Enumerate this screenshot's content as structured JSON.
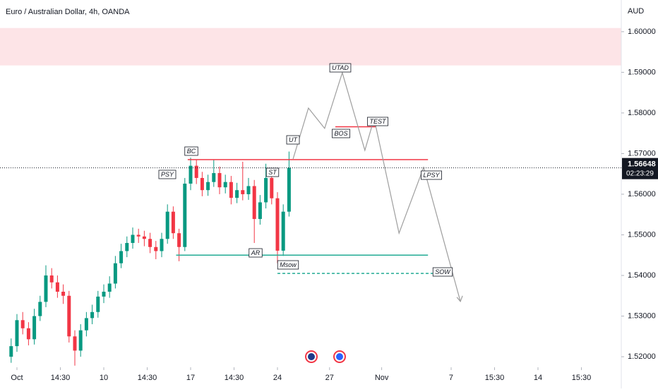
{
  "chart_data": {
    "type": "candlestick",
    "title": "Euro / Australian Dollar, 4h, OANDA",
    "y_unit": "AUD",
    "x": [
      -2,
      0,
      2,
      4,
      6,
      8,
      10,
      12,
      14,
      16,
      18,
      20,
      22,
      24,
      26,
      28,
      30,
      32,
      34,
      36,
      38,
      40,
      42,
      44,
      46,
      48,
      50,
      52,
      54,
      56,
      58,
      60,
      62,
      64,
      66,
      68,
      70,
      72,
      74,
      76,
      78,
      80,
      82,
      84,
      86,
      88,
      90,
      92,
      94
    ],
    "open": [
      1.52,
      1.5226,
      1.529,
      1.527,
      1.5243,
      1.53,
      1.5335,
      1.54,
      1.5383,
      1.536,
      1.535,
      1.525,
      1.5215,
      1.5265,
      1.5295,
      1.531,
      1.5348,
      1.536,
      1.538,
      1.543,
      1.546,
      1.548,
      1.55,
      1.5496,
      1.549,
      1.547,
      1.546,
      1.549,
      1.5557,
      1.5504,
      1.547,
      1.5626,
      1.567,
      1.564,
      1.561,
      1.563,
      1.5652,
      1.5617,
      1.563,
      1.5591,
      1.561,
      1.56,
      1.562,
      1.5539,
      1.558,
      1.564,
      1.559,
      1.5461,
      1.5557
    ],
    "high": [
      1.5245,
      1.5305,
      1.531,
      1.5285,
      1.5318,
      1.535,
      1.5425,
      1.5418,
      1.54,
      1.5378,
      1.5362,
      1.5265,
      1.528,
      1.531,
      1.5328,
      1.5362,
      1.5378,
      1.5398,
      1.5448,
      1.5478,
      1.5496,
      1.5518,
      1.5515,
      1.551,
      1.5505,
      1.5485,
      1.5505,
      1.5575,
      1.557,
      1.5515,
      1.564,
      1.569,
      1.5685,
      1.5655,
      1.5648,
      1.5685,
      1.5668,
      1.5648,
      1.5645,
      1.5628,
      1.568,
      1.564,
      1.5635,
      1.5598,
      1.5675,
      1.5655,
      1.5605,
      1.5575,
      1.5705
    ],
    "low": [
      1.5185,
      1.5212,
      1.5255,
      1.5228,
      1.523,
      1.5288,
      1.5322,
      1.5368,
      1.5345,
      1.533,
      1.5235,
      1.5178,
      1.52,
      1.525,
      1.528,
      1.5296,
      1.5332,
      1.5345,
      1.5368,
      1.5418,
      1.5445,
      1.5466,
      1.548,
      1.5472,
      1.5455,
      1.544,
      1.5445,
      1.5478,
      1.549,
      1.5435,
      1.546,
      1.561,
      1.5625,
      1.5595,
      1.5596,
      1.5618,
      1.56,
      1.5602,
      1.5575,
      1.5578,
      1.5585,
      1.5586,
      1.548,
      1.5525,
      1.5565,
      1.5575,
      1.543,
      1.5448,
      1.5545
    ],
    "close": [
      1.5226,
      1.529,
      1.527,
      1.5243,
      1.53,
      1.5335,
      1.54,
      1.5383,
      1.536,
      1.535,
      1.525,
      1.5215,
      1.5265,
      1.5295,
      1.531,
      1.5348,
      1.536,
      1.538,
      1.543,
      1.546,
      1.548,
      1.55,
      1.5496,
      1.549,
      1.547,
      1.546,
      1.549,
      1.5557,
      1.5504,
      1.547,
      1.5626,
      1.567,
      1.564,
      1.561,
      1.563,
      1.5652,
      1.5617,
      1.563,
      1.5591,
      1.561,
      1.56,
      1.562,
      1.5539,
      1.558,
      1.564,
      1.559,
      1.5461,
      1.5557,
      1.5665
    ],
    "up_color": "#089981",
    "down_color": "#f23645",
    "xlim": [
      -5.85,
      208.78
    ],
    "ylim": [
      1.5174,
      1.6078
    ],
    "xticks": [
      {
        "value": 0,
        "label": "Oct"
      },
      {
        "value": 15,
        "label": "14:30"
      },
      {
        "value": 30,
        "label": "10"
      },
      {
        "value": 45,
        "label": "14:30"
      },
      {
        "value": 60,
        "label": "17"
      },
      {
        "value": 75,
        "label": "14:30"
      },
      {
        "value": 90,
        "label": "24"
      },
      {
        "value": 108,
        "label": "27"
      },
      {
        "value": 126,
        "label": "Nov"
      },
      {
        "value": 150,
        "label": "7"
      },
      {
        "value": 165,
        "label": "15:30"
      },
      {
        "value": 180,
        "label": "14"
      },
      {
        "value": 195,
        "label": "15:30"
      }
    ],
    "yticks": [
      {
        "value": 1.52,
        "label": "1.52000"
      },
      {
        "value": 1.53,
        "label": "1.53000"
      },
      {
        "value": 1.54,
        "label": "1.54000"
      },
      {
        "value": 1.55,
        "label": "1.55000"
      },
      {
        "value": 1.56,
        "label": "1.56000"
      },
      {
        "value": 1.57,
        "label": "1.57000"
      },
      {
        "value": 1.58,
        "label": "1.58000"
      },
      {
        "value": 1.59,
        "label": "1.59000"
      },
      {
        "value": 1.6,
        "label": "1.60000"
      }
    ],
    "last_price": {
      "value": 1.56648,
      "label": "1.56648",
      "countdown": "02:23:29"
    },
    "zone": {
      "from": 1.5917,
      "to": 1.6009,
      "color": "#fde4e7"
    },
    "levels": [
      {
        "value": 1.5685,
        "x_from": 59,
        "x_to": 142,
        "color": "#f23645",
        "dashed": false
      },
      {
        "value": 1.5766,
        "x_from": 110,
        "x_to": 124,
        "color": "#f23645",
        "dashed": false
      },
      {
        "value": 1.545,
        "x_from": 55,
        "x_to": 142,
        "color": "#22ab94",
        "dashed": false
      },
      {
        "value": 1.5405,
        "x_from": 90,
        "x_to": 150,
        "color": "#22ab94",
        "dashed": true
      }
    ],
    "projection": {
      "color": "#9e9e9e",
      "x": [
        95.4,
        100.7,
        106.3,
        112.4,
        120.2,
        123.4,
        132,
        140.5,
        153.2
      ],
      "values": [
        1.5687,
        1.5812,
        1.5762,
        1.5899,
        1.5708,
        1.5786,
        1.5504,
        1.5666,
        1.5336
      ]
    },
    "annotations": [
      "PSY",
      "BC",
      "AR",
      "ST",
      "UT",
      "Msow",
      "UTAD",
      "BOS",
      "TEST",
      "LPSY",
      "SOW"
    ]
  }
}
